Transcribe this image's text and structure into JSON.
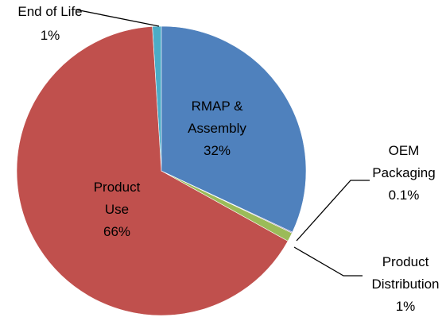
{
  "chart_data": {
    "type": "pie",
    "categories": [
      "RMAP & Assembly",
      "OEM Packaging",
      "Product Distribution",
      "Product Use",
      "End of Life"
    ],
    "values": [
      32,
      0.1,
      1,
      66,
      1
    ],
    "value_labels": [
      "32%",
      "0.1%",
      "1%",
      "66%",
      "1%"
    ],
    "colors": [
      "#4f81bd",
      "#8064a2",
      "#9bbb59",
      "#c0504d",
      "#4bacc6"
    ]
  }
}
